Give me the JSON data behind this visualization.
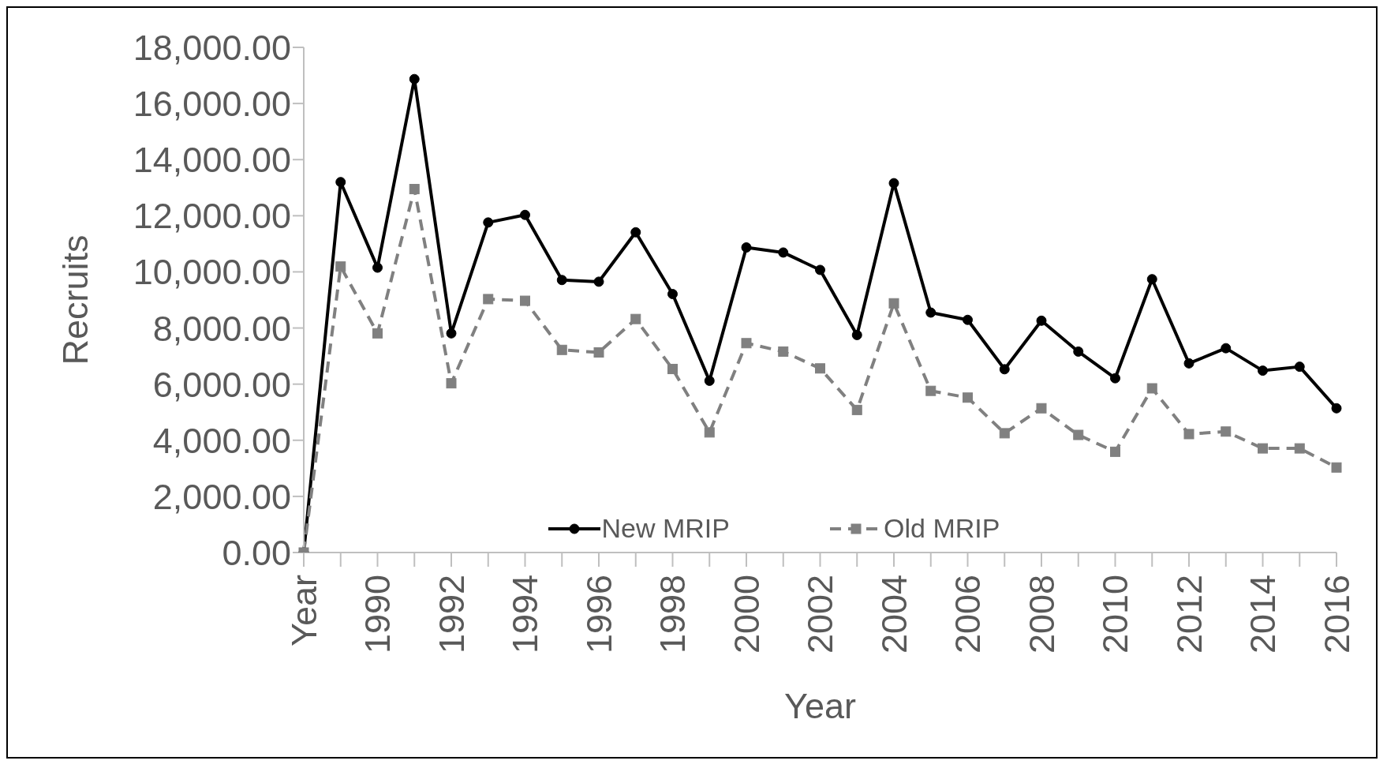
{
  "chart_data": {
    "type": "line",
    "xlabel": "Year",
    "ylabel": "Recruits",
    "categories": [
      "Year",
      null,
      "1990",
      null,
      "1992",
      null,
      "1994",
      null,
      "1996",
      null,
      "1998",
      null,
      "2000",
      null,
      "2002",
      null,
      "2004",
      null,
      "2006",
      null,
      "2008",
      null,
      "2010",
      null,
      "2012",
      null,
      "2014",
      null,
      "2016"
    ],
    "ylim": [
      0,
      18000
    ],
    "yticks": [
      {
        "value": 0,
        "label": "0.00"
      },
      {
        "value": 2000,
        "label": "2,000.00"
      },
      {
        "value": 4000,
        "label": "4,000.00"
      },
      {
        "value": 6000,
        "label": "6,000.00"
      },
      {
        "value": 8000,
        "label": "8,000.00"
      },
      {
        "value": 10000,
        "label": "10,000.00"
      },
      {
        "value": 12000,
        "label": "12,000.00"
      },
      {
        "value": 14000,
        "label": "14,000.00"
      },
      {
        "value": 16000,
        "label": "16,000.00"
      },
      {
        "value": 18000,
        "label": "18,000.00"
      }
    ],
    "grid": false,
    "legend": "bottom",
    "series": [
      {
        "name": "New MRIP",
        "color": "#000000",
        "marker": "circle",
        "line_style": "solid",
        "values": [
          0,
          13200,
          10150,
          16870,
          7810,
          11760,
          12030,
          9710,
          9650,
          11410,
          9210,
          6120,
          10870,
          10690,
          10070,
          7750,
          13160,
          8550,
          8290,
          6530,
          8260,
          7160,
          6210,
          9740,
          6740,
          7280,
          6480,
          6620,
          5140
        ]
      },
      {
        "name": "Old MRIP",
        "color": "#808080",
        "marker": "square",
        "line_style": "dashed",
        "values": [
          0,
          10190,
          7810,
          12950,
          6030,
          9030,
          8970,
          7220,
          7130,
          8320,
          6540,
          4280,
          7460,
          7160,
          6560,
          5080,
          8880,
          5760,
          5520,
          4250,
          5140,
          4190,
          3590,
          5850,
          4220,
          4310,
          3710,
          3710,
          3030
        ]
      }
    ]
  }
}
